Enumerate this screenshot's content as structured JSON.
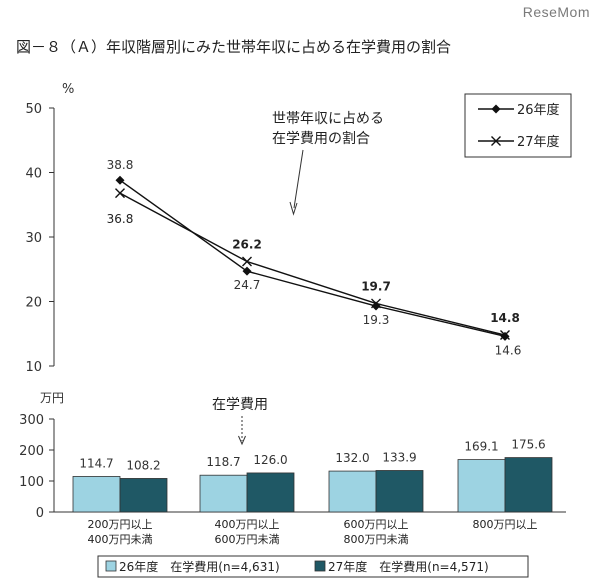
{
  "watermark": "ReseMom",
  "title": "図－８（Ａ）年収階層別にみた世帯年収に占める在学費用の割合",
  "chart_data": [
    {
      "type": "line",
      "unit_label": "%",
      "ylim": [
        10,
        50
      ],
      "yticks": [
        10,
        20,
        30,
        40,
        50
      ],
      "categories": [
        "200万円以上\n400万円未満",
        "400万円以上\n600万円未満",
        "600万円以上\n800万円未満",
        "800万円以上"
      ],
      "series": [
        {
          "name": "26年度",
          "marker": "diamond",
          "values": [
            38.8,
            24.7,
            19.3,
            14.6
          ],
          "value_labels": [
            "38.8",
            "24.7",
            "19.3",
            "14.6"
          ]
        },
        {
          "name": "27年度",
          "marker": "x",
          "values": [
            36.8,
            26.2,
            19.7,
            14.8
          ],
          "value_labels": [
            "36.8",
            "26.2",
            "19.7",
            "14.8"
          ]
        }
      ],
      "annotation": "世帯年収に占める\n在学費用の割合",
      "legend_position": "top-right",
      "grid": false
    },
    {
      "type": "bar",
      "unit_label": "万円",
      "ylim": [
        0,
        300
      ],
      "yticks": [
        0,
        100,
        200,
        300
      ],
      "categories": [
        "200万円以上\n400万円未満",
        "400万円以上\n600万円未満",
        "600万円以上\n800万円未満",
        "800万円以上"
      ],
      "series": [
        {
          "name": "26年度　在学費用(n=4,631)",
          "color": "#9dd3e2",
          "values": [
            114.7,
            118.7,
            132.0,
            169.1
          ],
          "value_labels": [
            "114.7",
            "118.7",
            "132.0",
            "169.1"
          ]
        },
        {
          "name": "27年度　在学費用(n=4,571)",
          "color": "#1f5865",
          "values": [
            108.2,
            126.0,
            133.9,
            175.6
          ],
          "value_labels": [
            "108.2",
            "126.0",
            "133.9",
            "175.6"
          ]
        }
      ],
      "annotation": "在学費用",
      "legend_position": "bottom",
      "grid": false
    }
  ]
}
